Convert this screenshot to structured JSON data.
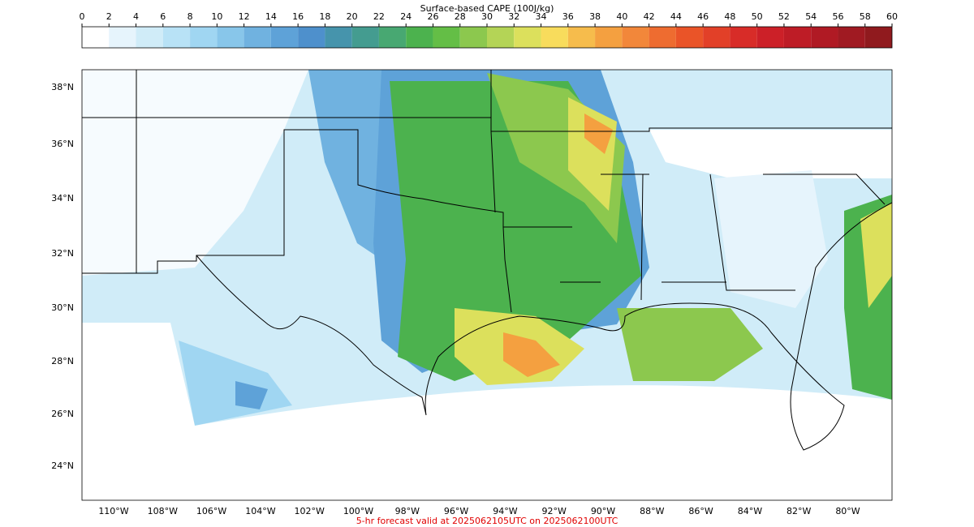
{
  "colorbar": {
    "title": "Surface-based CAPE (100J/kg)",
    "ticks": [
      0,
      2,
      4,
      6,
      8,
      10,
      12,
      14,
      16,
      18,
      20,
      22,
      24,
      26,
      28,
      30,
      32,
      34,
      36,
      38,
      40,
      42,
      44,
      46,
      48,
      50,
      52,
      54,
      56,
      58,
      60
    ],
    "colors": [
      "#ffffff",
      "#e6f4fc",
      "#d0ecf8",
      "#b8e2f6",
      "#a0d6f2",
      "#88c6ea",
      "#70b2e0",
      "#5ea2d8",
      "#4e90cc",
      "#4694ac",
      "#449c90",
      "#48a872",
      "#4cb24e",
      "#64be46",
      "#8cc84e",
      "#b4d456",
      "#dce05c",
      "#f8dc5c",
      "#f6bc4c",
      "#f4a040",
      "#f2873a",
      "#ee6c30",
      "#ea5428",
      "#e24028",
      "#d82c28",
      "#cc2028",
      "#be1c26",
      "#b01a24",
      "#a01a22",
      "#901a1e"
    ]
  },
  "map": {
    "lat_labels": [
      "38°N",
      "36°N",
      "34°N",
      "32°N",
      "30°N",
      "28°N",
      "26°N",
      "24°N"
    ],
    "lon_labels": [
      "110°W",
      "108°W",
      "106°W",
      "104°W",
      "102°W",
      "100°W",
      "98°W",
      "96°W",
      "94°W",
      "92°W",
      "90°W",
      "88°W",
      "86°W",
      "84°W",
      "82°W",
      "80°W"
    ]
  },
  "footer": "5-hr forecast valid at 2025062105UTC on 2025062100UTC"
}
